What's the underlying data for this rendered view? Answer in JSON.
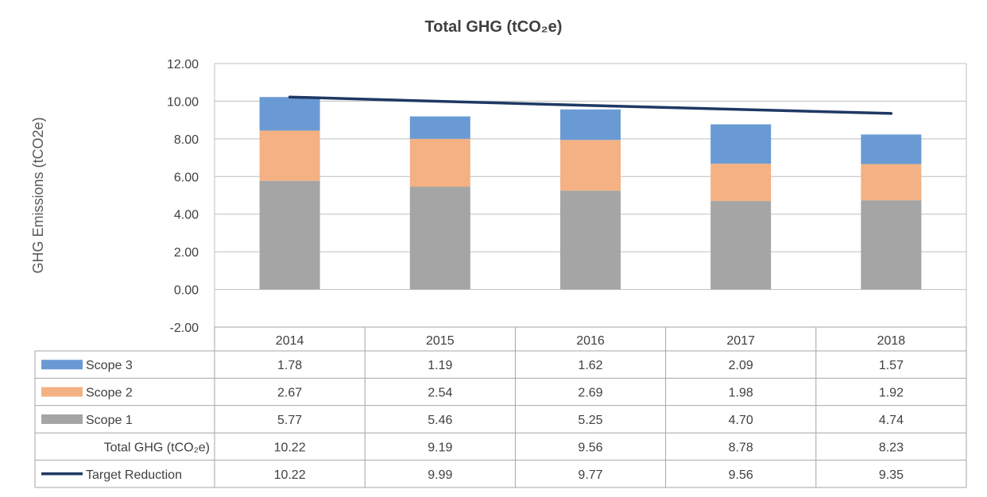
{
  "chart_data": {
    "type": "bar",
    "stacked": true,
    "title": "Total GHG (tCO₂e)",
    "ylabel": "GHG Emissions (tCO2e)",
    "xlabel": "",
    "ylim": [
      -2,
      12
    ],
    "y_ticks": [
      "-2.00",
      "0.00",
      "2.00",
      "4.00",
      "6.00",
      "8.00",
      "10.00",
      "12.00"
    ],
    "grid": true,
    "categories": [
      "2014",
      "2015",
      "2016",
      "2017",
      "2018"
    ],
    "series": [
      {
        "name": "Scope 1",
        "type": "bar",
        "color": "#a5a5a5",
        "values": [
          5.77,
          5.46,
          5.25,
          4.7,
          4.74
        ],
        "labels": [
          "5.77",
          "5.46",
          "5.25",
          "4.70",
          "4.74"
        ]
      },
      {
        "name": "Scope 2",
        "type": "bar",
        "color": "#f4b183",
        "values": [
          2.67,
          2.54,
          2.69,
          1.98,
          1.92
        ],
        "labels": [
          "2.67",
          "2.54",
          "2.69",
          "1.98",
          "1.92"
        ]
      },
      {
        "name": "Scope 3",
        "type": "bar",
        "color": "#6a9ad4",
        "values": [
          1.78,
          1.19,
          1.62,
          2.09,
          1.57
        ],
        "labels": [
          "1.78",
          "1.19",
          "1.62",
          "2.09",
          "1.57"
        ]
      },
      {
        "name": "Target Reduction",
        "type": "line",
        "color": "#1f3864",
        "values": [
          10.22,
          9.99,
          9.77,
          9.56,
          9.35
        ],
        "labels": [
          "10.22",
          "9.99",
          "9.77",
          "9.56",
          "9.35"
        ]
      }
    ],
    "total_row": {
      "name": "Total GHG (tCO₂e)",
      "values": [
        10.22,
        9.19,
        9.56,
        8.78,
        8.23
      ],
      "labels": [
        "10.22",
        "9.19",
        "9.56",
        "8.78",
        "8.23"
      ]
    },
    "table_row_order": [
      "Scope 3",
      "Scope 2",
      "Scope 1",
      "Total GHG (tCO₂e)",
      "Target Reduction"
    ],
    "legend": "data-table"
  }
}
